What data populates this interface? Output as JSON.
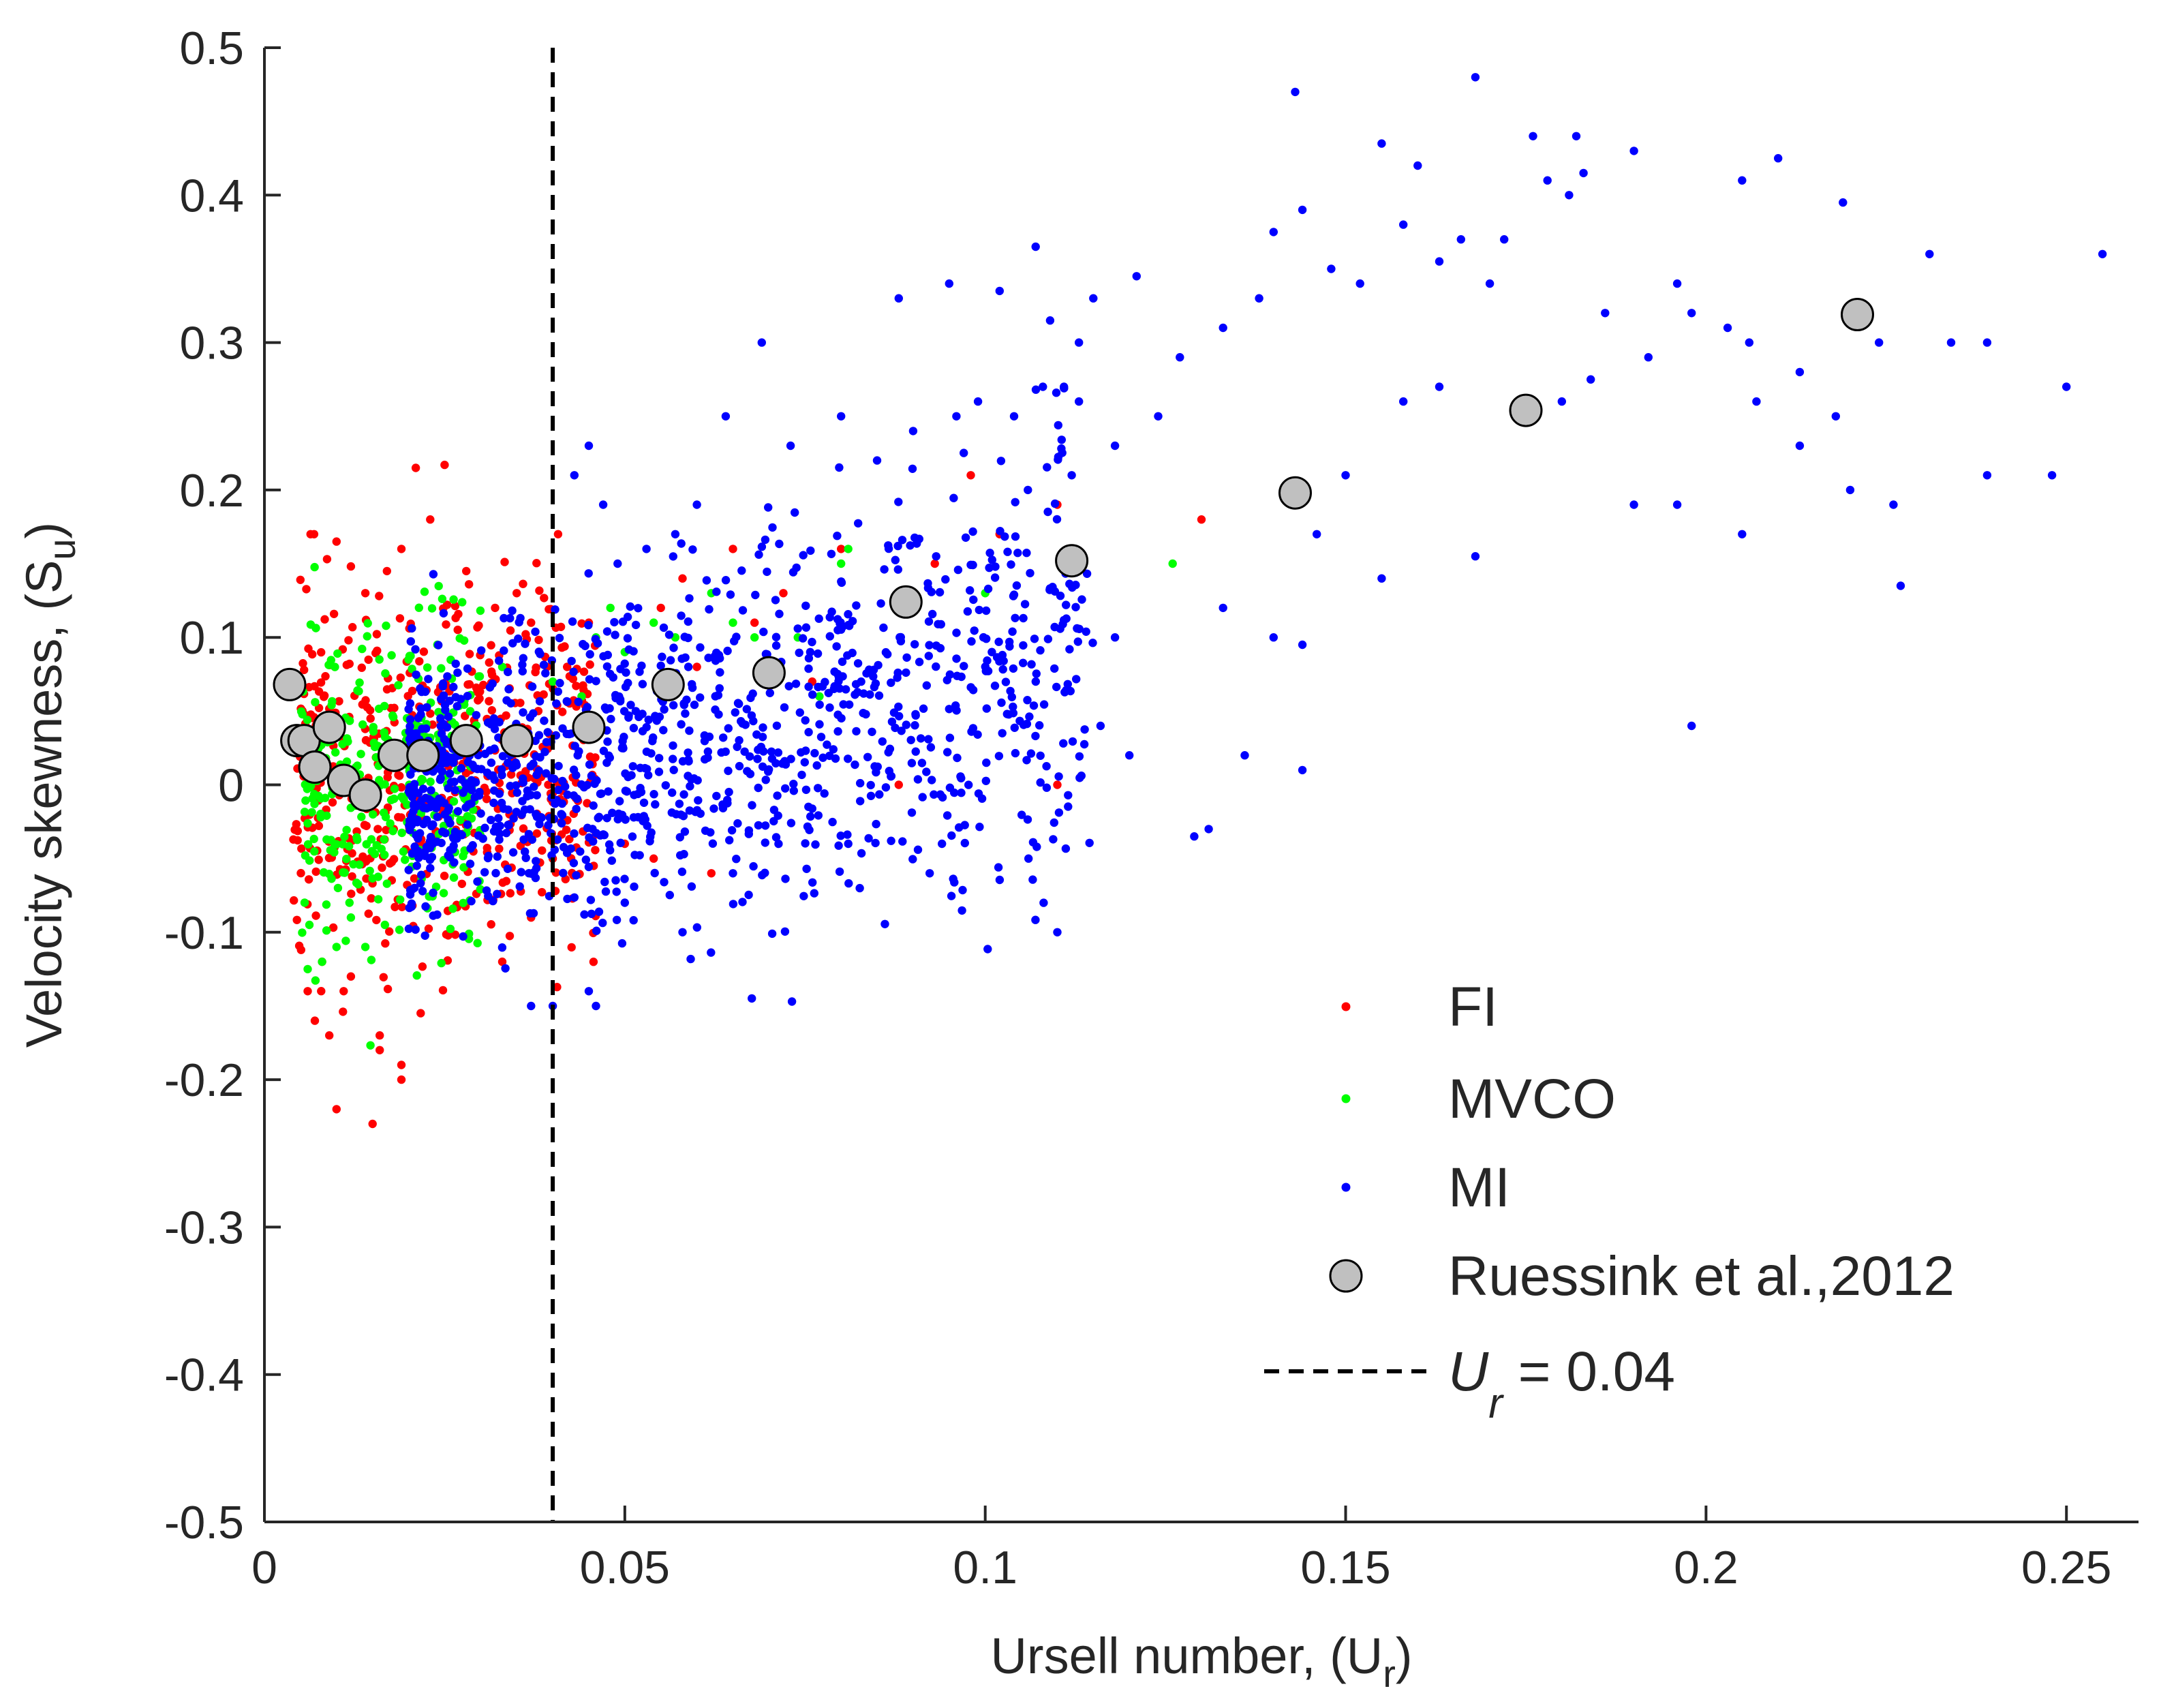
{
  "chart_data": {
    "type": "scatter",
    "title": "",
    "xlabel": {
      "main": "Ursell number, (U",
      "sub": "r",
      "close": ")"
    },
    "ylabel": {
      "main": "Velocity skewness, (S",
      "sub": "u",
      "close": ")"
    },
    "xlim": [
      0,
      0.26
    ],
    "ylim": [
      -0.5,
      0.5
    ],
    "xticks": [
      0,
      0.05,
      0.1,
      0.15,
      0.2,
      0.25
    ],
    "xtick_labels": [
      "0",
      "0.05",
      "0.1",
      "0.15",
      "0.2",
      "0.25"
    ],
    "yticks": [
      -0.5,
      -0.4,
      -0.3,
      -0.2,
      -0.1,
      0,
      0.1,
      0.2,
      0.3,
      0.4,
      0.5
    ],
    "ytick_labels": [
      "-0.5",
      "-0.4",
      "-0.3",
      "-0.2",
      "-0.1",
      "0",
      "0.1",
      "0.2",
      "0.3",
      "0.4",
      "0.5"
    ],
    "grid": false,
    "legend_position": "bottom-right",
    "legend": [
      {
        "key": "FI",
        "label": "FI",
        "marker": "dot",
        "color": "#ff0000"
      },
      {
        "key": "MVCO",
        "label": "MVCO",
        "marker": "dot",
        "color": "#00ff00"
      },
      {
        "key": "MI",
        "label": "MI",
        "marker": "dot",
        "color": "#0000ff"
      },
      {
        "key": "ruessink",
        "label": "Ruessink et al.,2012",
        "marker": "circle",
        "color": "#c0c0c0"
      },
      {
        "key": "threshold",
        "label_main": "U",
        "label_sub": "r",
        "label_rest": " = 0.04",
        "marker": "dashed-line",
        "color": "#000000"
      }
    ],
    "reference_line": {
      "axis": "x",
      "value": 0.04,
      "style": "dashed",
      "color": "#000000"
    },
    "series": [
      {
        "name": "FI",
        "color": "#ff0000",
        "points": [
          [
            0.006,
            -0.14
          ],
          [
            0.007,
            -0.16
          ],
          [
            0.009,
            -0.17
          ],
          [
            0.01,
            -0.22
          ],
          [
            0.015,
            -0.23
          ],
          [
            0.016,
            -0.17
          ],
          [
            0.016,
            -0.18
          ],
          [
            0.019,
            -0.19
          ],
          [
            0.019,
            -0.2
          ],
          [
            0.011,
            -0.14
          ],
          [
            0.012,
            -0.13
          ],
          [
            0.008,
            -0.12
          ],
          [
            0.021,
            0.215
          ],
          [
            0.025,
            0.217
          ],
          [
            0.023,
            0.18
          ],
          [
            0.017,
            0.145
          ],
          [
            0.019,
            0.16
          ],
          [
            0.01,
            0.165
          ],
          [
            0.014,
            0.13
          ],
          [
            0.028,
            0.145
          ],
          [
            0.032,
            0.12
          ],
          [
            0.035,
            0.13
          ],
          [
            0.037,
            0.11
          ],
          [
            0.033,
            -0.12
          ],
          [
            0.037,
            -0.09
          ],
          [
            0.04,
            -0.05
          ],
          [
            0.045,
            0.11
          ],
          [
            0.05,
            -0.04
          ],
          [
            0.054,
            -0.05
          ],
          [
            0.055,
            0.12
          ],
          [
            0.058,
            0.14
          ],
          [
            0.062,
            -0.06
          ],
          [
            0.065,
            0.16
          ],
          [
            0.068,
            0.11
          ],
          [
            0.072,
            0.13
          ],
          [
            0.076,
            0.07
          ],
          [
            0.08,
            0.16
          ],
          [
            0.088,
            0.0
          ],
          [
            0.093,
            0.15
          ],
          [
            0.098,
            0.21
          ],
          [
            0.102,
            0.17
          ],
          [
            0.11,
            0.19
          ],
          [
            0.11,
            0.0
          ],
          [
            0.13,
            0.18
          ],
          [
            0.038,
            0.05
          ],
          [
            0.042,
            0.08
          ],
          [
            0.046,
            0.04
          ],
          [
            0.06,
            0.08
          ]
        ],
        "cluster": {
          "x_min": 0.004,
          "x_max": 0.046,
          "y_mean": 0.01,
          "y_spread": 0.065,
          "count": 520,
          "seed": 11
        }
      },
      {
        "name": "MVCO",
        "color": "#00ff00",
        "points": [
          [
            0.006,
            -0.125
          ],
          [
            0.008,
            -0.12
          ],
          [
            0.01,
            -0.11
          ],
          [
            0.012,
            -0.09
          ],
          [
            0.014,
            -0.11
          ],
          [
            0.02,
            0.085
          ],
          [
            0.024,
            0.095
          ],
          [
            0.033,
            0.08
          ],
          [
            0.048,
            0.12
          ],
          [
            0.05,
            0.09
          ],
          [
            0.054,
            0.11
          ],
          [
            0.057,
            0.1
          ],
          [
            0.062,
            0.13
          ],
          [
            0.065,
            0.11
          ],
          [
            0.068,
            0.1
          ],
          [
            0.074,
            0.1
          ],
          [
            0.077,
            0.06
          ],
          [
            0.08,
            0.15
          ],
          [
            0.081,
            0.16
          ],
          [
            0.1,
            0.13
          ],
          [
            0.126,
            0.15
          ],
          [
            0.04,
            0.07
          ],
          [
            0.044,
            0.06
          ],
          [
            0.046,
            0.1
          ]
        ],
        "cluster": {
          "x_min": 0.005,
          "x_max": 0.03,
          "y_mean": 0.005,
          "y_spread": 0.05,
          "count": 340,
          "seed": 23
        }
      },
      {
        "name": "MI",
        "color": "#0000ff",
        "points": [
          [
            0.143,
            0.47
          ],
          [
            0.168,
            0.48
          ],
          [
            0.155,
            0.435
          ],
          [
            0.16,
            0.42
          ],
          [
            0.176,
            0.44
          ],
          [
            0.182,
            0.44
          ],
          [
            0.19,
            0.43
          ],
          [
            0.21,
            0.425
          ],
          [
            0.205,
            0.41
          ],
          [
            0.178,
            0.41
          ],
          [
            0.183,
            0.415
          ],
          [
            0.172,
            0.37
          ],
          [
            0.219,
            0.395
          ],
          [
            0.181,
            0.4
          ],
          [
            0.158,
            0.38
          ],
          [
            0.144,
            0.39
          ],
          [
            0.14,
            0.375
          ],
          [
            0.121,
            0.345
          ],
          [
            0.107,
            0.365
          ],
          [
            0.095,
            0.34
          ],
          [
            0.088,
            0.33
          ],
          [
            0.102,
            0.335
          ],
          [
            0.109,
            0.315
          ],
          [
            0.113,
            0.3
          ],
          [
            0.115,
            0.33
          ],
          [
            0.127,
            0.29
          ],
          [
            0.133,
            0.31
          ],
          [
            0.138,
            0.33
          ],
          [
            0.148,
            0.35
          ],
          [
            0.152,
            0.34
          ],
          [
            0.163,
            0.355
          ],
          [
            0.166,
            0.37
          ],
          [
            0.17,
            0.34
          ],
          [
            0.186,
            0.32
          ],
          [
            0.192,
            0.29
          ],
          [
            0.196,
            0.34
          ],
          [
            0.198,
            0.32
          ],
          [
            0.203,
            0.31
          ],
          [
            0.206,
            0.3
          ],
          [
            0.213,
            0.28
          ],
          [
            0.224,
            0.3
          ],
          [
            0.231,
            0.36
          ],
          [
            0.234,
            0.3
          ],
          [
            0.239,
            0.3
          ],
          [
            0.255,
            0.36
          ],
          [
            0.25,
            0.27
          ],
          [
            0.248,
            0.21
          ],
          [
            0.239,
            0.21
          ],
          [
            0.226,
            0.19
          ],
          [
            0.227,
            0.135
          ],
          [
            0.22,
            0.2
          ],
          [
            0.218,
            0.25
          ],
          [
            0.213,
            0.23
          ],
          [
            0.207,
            0.26
          ],
          [
            0.205,
            0.17
          ],
          [
            0.198,
            0.04
          ],
          [
            0.196,
            0.19
          ],
          [
            0.19,
            0.19
          ],
          [
            0.184,
            0.275
          ],
          [
            0.18,
            0.26
          ],
          [
            0.168,
            0.155
          ],
          [
            0.163,
            0.27
          ],
          [
            0.158,
            0.26
          ],
          [
            0.155,
            0.14
          ],
          [
            0.15,
            0.21
          ],
          [
            0.146,
            0.17
          ],
          [
            0.144,
            0.095
          ],
          [
            0.144,
            0.01
          ],
          [
            0.14,
            0.1
          ],
          [
            0.136,
            0.02
          ],
          [
            0.133,
            0.12
          ],
          [
            0.129,
            -0.035
          ],
          [
            0.124,
            0.25
          ],
          [
            0.118,
            0.23
          ],
          [
            0.118,
            0.1
          ],
          [
            0.116,
            0.04
          ],
          [
            0.113,
            0.26
          ],
          [
            0.112,
            0.21
          ],
          [
            0.11,
            -0.1
          ],
          [
            0.108,
            0.27
          ],
          [
            0.104,
            0.25
          ],
          [
            0.099,
            0.26
          ],
          [
            0.096,
            0.25
          ],
          [
            0.09,
            0.24
          ],
          [
            0.085,
            0.22
          ],
          [
            0.08,
            0.25
          ],
          [
            0.073,
            0.23
          ],
          [
            0.069,
            0.3
          ],
          [
            0.064,
            0.25
          ],
          [
            0.06,
            0.19
          ],
          [
            0.057,
            0.17
          ],
          [
            0.053,
            0.16
          ],
          [
            0.049,
            0.15
          ],
          [
            0.045,
            0.23
          ],
          [
            0.043,
            0.21
          ],
          [
            0.047,
            0.19
          ],
          [
            0.046,
            -0.15
          ],
          [
            0.04,
            -0.15
          ],
          [
            0.037,
            -0.15
          ],
          [
            0.045,
            -0.14
          ],
          [
            0.05,
            -0.08
          ],
          [
            0.058,
            -0.1
          ],
          [
            0.065,
            -0.06
          ],
          [
            0.081,
            -0.04
          ],
          [
            0.094,
            -0.04
          ],
          [
            0.106,
            -0.05
          ],
          [
            0.131,
            -0.03
          ],
          [
            0.12,
            0.02
          ]
        ],
        "cluster": {
          "x_min": 0.02,
          "x_max": 0.115,
          "y_mean": 0.03,
          "y_spread": 0.075,
          "count": 1250,
          "seed": 37
        }
      },
      {
        "name": "Ruessink et al.,2012",
        "color": "#c0c0c0",
        "points": [
          [
            0.0035,
            0.068
          ],
          [
            0.0045,
            0.03
          ],
          [
            0.0055,
            0.03
          ],
          [
            0.007,
            0.012
          ],
          [
            0.009,
            0.039
          ],
          [
            0.011,
            0.003
          ],
          [
            0.014,
            -0.007
          ],
          [
            0.018,
            0.02
          ],
          [
            0.022,
            0.02
          ],
          [
            0.028,
            0.03
          ],
          [
            0.035,
            0.03
          ],
          [
            0.045,
            0.039
          ],
          [
            0.056,
            0.068
          ],
          [
            0.07,
            0.076
          ],
          [
            0.089,
            0.124
          ],
          [
            0.112,
            0.152
          ],
          [
            0.143,
            0.198
          ],
          [
            0.175,
            0.254
          ],
          [
            0.221,
            0.319
          ]
        ]
      }
    ]
  }
}
